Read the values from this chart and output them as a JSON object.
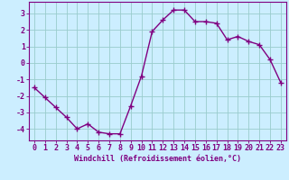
{
  "x": [
    0,
    1,
    2,
    3,
    4,
    5,
    6,
    7,
    8,
    9,
    10,
    11,
    12,
    13,
    14,
    15,
    16,
    17,
    18,
    19,
    20,
    21,
    22,
    23
  ],
  "y": [
    -1.5,
    -2.1,
    -2.7,
    -3.3,
    -4.0,
    -3.7,
    -4.2,
    -4.3,
    -4.3,
    -2.6,
    -0.8,
    1.9,
    2.6,
    3.2,
    3.2,
    2.5,
    2.5,
    2.4,
    1.4,
    1.6,
    1.3,
    1.1,
    0.2,
    -1.2
  ],
  "line_color": "#800080",
  "marker": "+",
  "marker_size": 4,
  "bg_color": "#cceeff",
  "grid_color": "#99cccc",
  "axis_color": "#800080",
  "spine_color": "#800080",
  "xlabel": "Windchill (Refroidissement éolien,°C)",
  "xlim_min": -0.5,
  "xlim_max": 23.5,
  "ylim_min": -4.7,
  "ylim_max": 3.7,
  "yticks": [
    -4,
    -3,
    -2,
    -1,
    0,
    1,
    2,
    3
  ],
  "xticks": [
    0,
    1,
    2,
    3,
    4,
    5,
    6,
    7,
    8,
    9,
    10,
    11,
    12,
    13,
    14,
    15,
    16,
    17,
    18,
    19,
    20,
    21,
    22,
    23
  ],
  "xtick_labels": [
    "0",
    "1",
    "2",
    "3",
    "4",
    "5",
    "6",
    "7",
    "8",
    "9",
    "10",
    "11",
    "12",
    "13",
    "14",
    "15",
    "16",
    "17",
    "18",
    "19",
    "20",
    "21",
    "22",
    "23"
  ],
  "xlabel_fontsize": 6.0,
  "tick_fontsize": 6.0,
  "linewidth": 1.0
}
